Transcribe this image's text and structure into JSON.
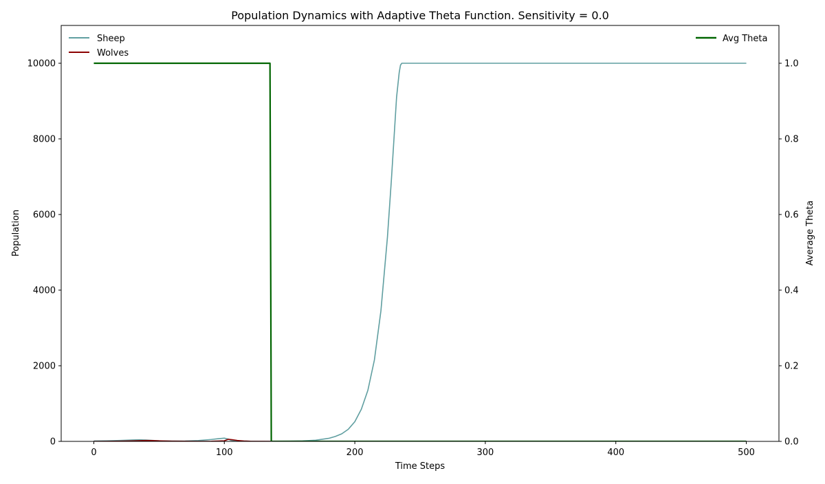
{
  "chart_data": {
    "type": "line",
    "title": "Population Dynamics with Adaptive Theta Function. Sensitivity = 0.0",
    "xlabel": "Time Steps",
    "ylabel": "Population",
    "y2label": "Average Theta",
    "xlim": [
      -25,
      525
    ],
    "ylim": [
      0,
      11000
    ],
    "y2lim": [
      0,
      1.1
    ],
    "xticks": [
      0,
      100,
      200,
      300,
      400,
      500
    ],
    "yticks": [
      0,
      2000,
      4000,
      6000,
      8000,
      10000
    ],
    "y2ticks": [
      0.0,
      0.2,
      0.4,
      0.6,
      0.8,
      1.0
    ],
    "y2ticklabels": [
      "0.0",
      "0.2",
      "0.4",
      "0.6",
      "0.8",
      "1.0"
    ],
    "grid": false,
    "legend_left": "top-left",
    "legend_right": "top-right",
    "series": [
      {
        "name": "Sheep",
        "axis": "left",
        "color": "#5f9ea0",
        "x": [
          0,
          10,
          20,
          30,
          35,
          40,
          50,
          60,
          70,
          80,
          90,
          95,
          100,
          103,
          105,
          110,
          120,
          130,
          140,
          150,
          160,
          170,
          180,
          185,
          190,
          195,
          200,
          205,
          210,
          215,
          220,
          225,
          228,
          230,
          232,
          234,
          235,
          236,
          240,
          300,
          400,
          500
        ],
        "y": [
          10,
          15,
          25,
          38,
          42,
          35,
          15,
          8,
          10,
          22,
          50,
          70,
          85,
          60,
          30,
          10,
          3,
          2,
          3,
          5,
          12,
          30,
          80,
          130,
          200,
          320,
          520,
          850,
          1350,
          2150,
          3450,
          5400,
          6900,
          8000,
          9100,
          9750,
          9950,
          10000,
          10000,
          10000,
          10000,
          10000
        ]
      },
      {
        "name": "Wolves",
        "axis": "left",
        "color": "#8b0000",
        "x": [
          0,
          10,
          20,
          30,
          40,
          45,
          50,
          60,
          70,
          80,
          90,
          100,
          103,
          106,
          110,
          115,
          120,
          130,
          140,
          200,
          300,
          400,
          500
        ],
        "y": [
          0,
          2,
          5,
          12,
          25,
          22,
          15,
          6,
          3,
          2,
          3,
          15,
          55,
          45,
          25,
          10,
          4,
          1,
          0,
          0,
          0,
          0,
          0
        ]
      },
      {
        "name": "Avg Theta",
        "axis": "right",
        "color": "#006400",
        "x": [
          0,
          135,
          136,
          500
        ],
        "y": [
          1.0,
          1.0,
          0.0,
          0.0
        ]
      }
    ]
  }
}
